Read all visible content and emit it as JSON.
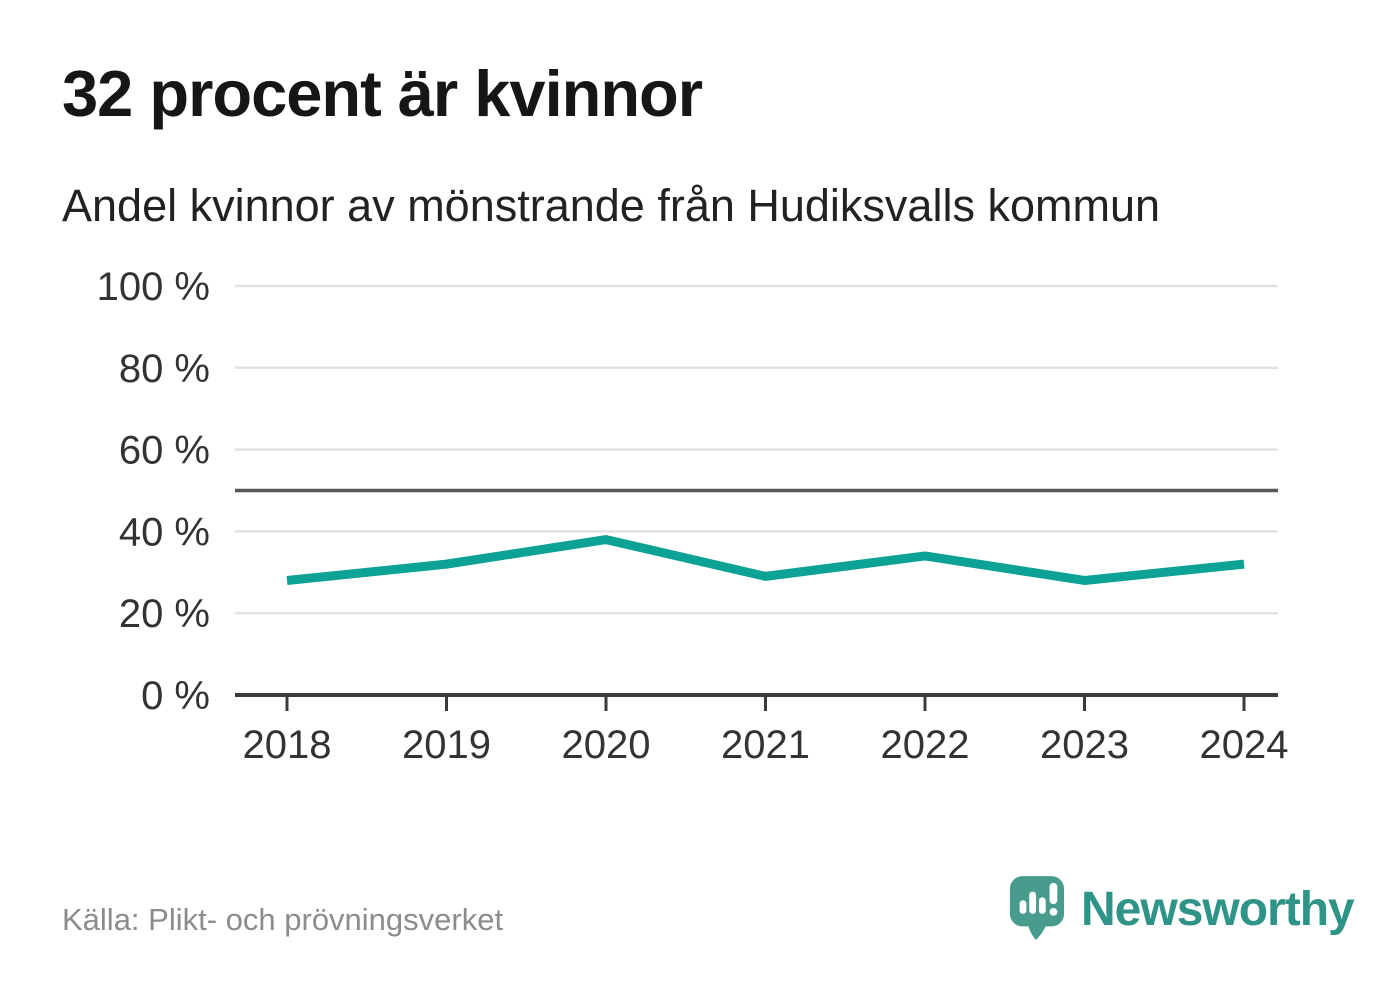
{
  "header": {
    "title": "32 procent är kvinnor",
    "subtitle": "Andel kvinnor av mönstrande från Hudiksvalls kommun"
  },
  "chart_data": {
    "type": "line",
    "title": "32 procent är kvinnor",
    "subtitle": "Andel kvinnor av mönstrande från Hudiksvalls kommun",
    "categories": [
      "2018",
      "2019",
      "2020",
      "2021",
      "2022",
      "2023",
      "2024"
    ],
    "values": [
      28,
      32,
      38,
      29,
      34,
      28,
      32
    ],
    "unit": "%",
    "xlabel": "",
    "ylabel": "",
    "ylim": [
      0,
      100
    ],
    "yticks": [
      0,
      20,
      40,
      60,
      80,
      100
    ],
    "ytick_suffix": " %",
    "reference_line": 50,
    "grid": true,
    "legend": "none",
    "colors": {
      "line": "#0ca295",
      "grid": "#e2e2e2",
      "axis": "#3b3b3b",
      "reference": "#58585a",
      "tick_text": "#333333"
    }
  },
  "footer": {
    "source": "Källa: Plikt- och prövningsverket",
    "brand": "Newsworthy",
    "brand_color": "#2f9488",
    "logo_color": "#479c8e"
  }
}
